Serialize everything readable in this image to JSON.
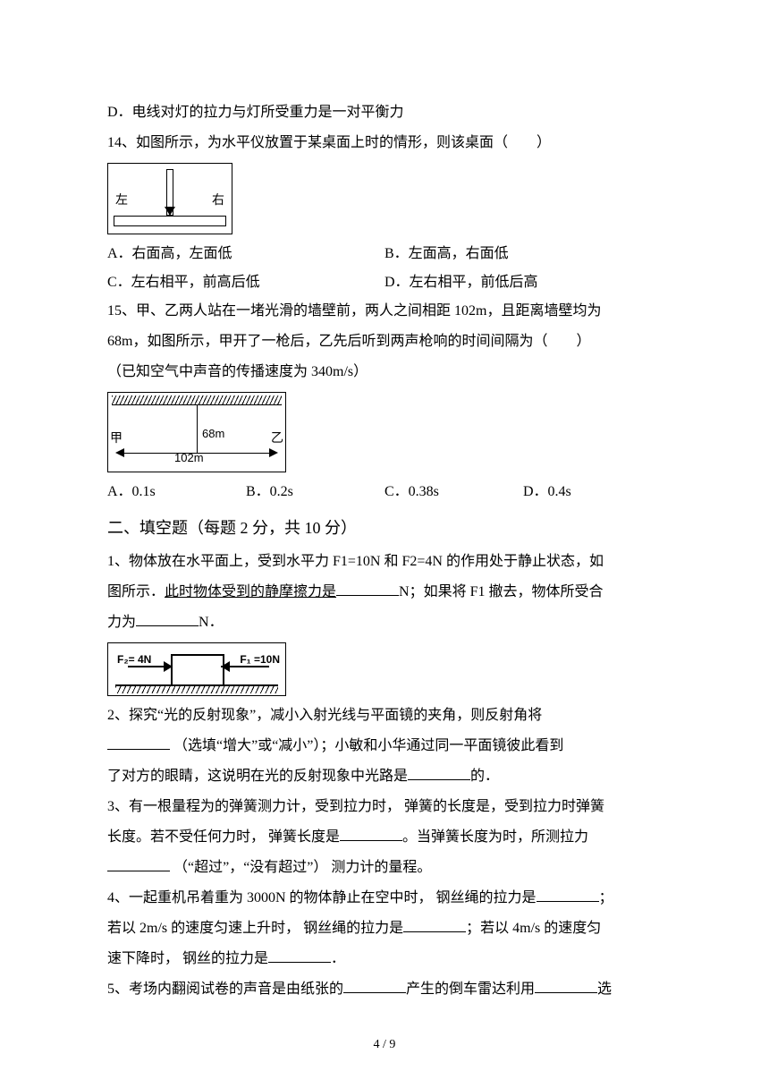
{
  "optionD_13": "D．电线对灯的拉力与灯所受重力是一对平衡力",
  "q14": {
    "stem": "14、如图所示，为水平仪放置于某桌面上时的情形，则该桌面（　　）",
    "left": "左",
    "right": "右",
    "A": "A．右面高，左面低",
    "B": "B．左面高，右面低",
    "C": "C．左右相平，前高后低",
    "D": "D．左右相平，前低后高"
  },
  "q15": {
    "stem1": "15、甲、乙两人站在一堵光滑的墙壁前，两人之间相距 102m，且距离墙壁均为",
    "stem2": "68m，如图所示，甲开了一枪后，乙先后听到两声枪响的时间间隔为（　　）",
    "stem3": "（已知空气中声音的传播速度为 340m/s）",
    "lbl68": "68m",
    "lbl102": "102m",
    "jia": "甲",
    "yi": "乙",
    "A": "A．0.1s",
    "B": "B．0.2s",
    "C": "C．0.38s",
    "D": "D．0.4s"
  },
  "section2": "二、填空题（每题 2 分，共 10 分）",
  "f1": {
    "a": "1、物体放在水平面上，受到水平力 F1=10N 和 F2=4N 的作用处于静止状态，如",
    "b1": "图所示．",
    "b2": "此时物体受到的静摩擦力是",
    "b3": "N；如果将 F1 撤去，物体所受合",
    "c1": "力为",
    "c2": "N．",
    "f2lbl": "F₂= 4N",
    "f1lbl": "F₁ =10N"
  },
  "f2": {
    "a": "2、探究“光的反射现象”，减小入射光线与平面镜的夹角，则反射角将",
    "b": " （选填“增大”或“减小”）；小敏和小华通过同一平面镜彼此看到",
    "c1": "了对方的眼睛，这说明在光的反射现象中光路是",
    "c2": "的．"
  },
  "f3": {
    "a": "3、有一根量程为的弹簧测力计，受到拉力时， 弹簧的长度是，受到拉力时弹簧",
    "b1": "长度。若不受任何力时， 弹簧长度是",
    "b2": "。当弹簧长度为时，所测拉力",
    "c": " （“超过”，“没有超过”） 测力计的量程。"
  },
  "f4": {
    "a1": "4、一起重机吊着重为 3000N 的物体静止在空中时， 钢丝绳的拉力是",
    "a2": "；",
    "b1": "若以 2m/s 的速度匀速上升时， 钢丝绳的拉力是",
    "b2": "；若以 4m/s 的速度匀",
    "c1": "速下降时， 钢丝的拉力是",
    "c2": "．"
  },
  "f5": {
    "a1": "5、考场内翻阅试卷的声音是由纸张的",
    "a2": "产生的倒车雷达利用",
    "a3": "选"
  },
  "pagenum": "4 / 9"
}
